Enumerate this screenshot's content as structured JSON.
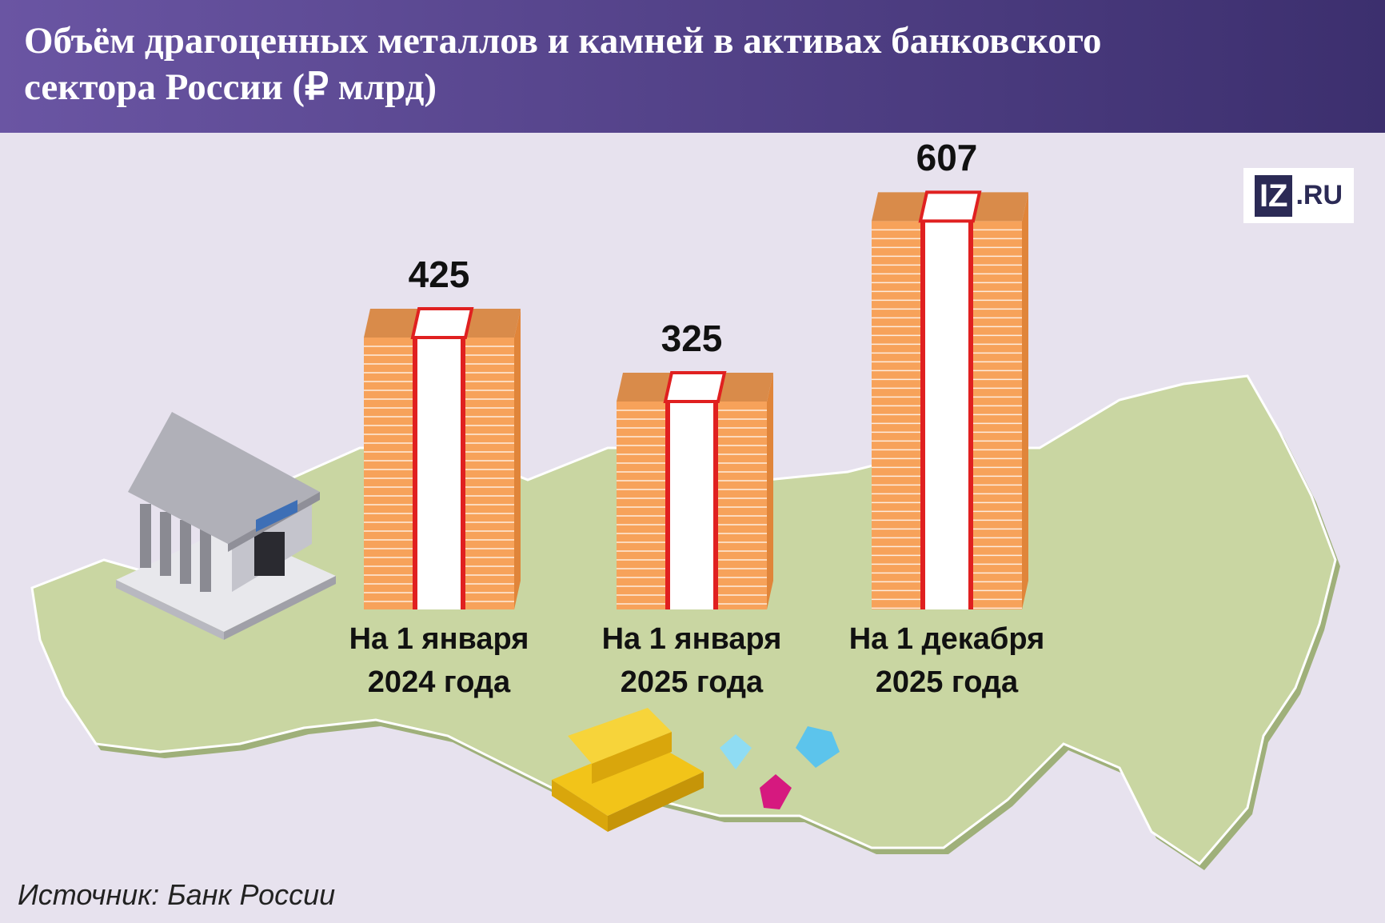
{
  "chart_data": {
    "type": "bar",
    "title": "Объём драгоценных металлов и камней в активах банковского сектора России (₽ млрд)",
    "categories": [
      "На 1 января 2024 года",
      "На 1 января 2025 года",
      "На 1 декабря 2025 года"
    ],
    "values": [
      425,
      325,
      607
    ],
    "color": "#f7a25a",
    "source": "Источник: Банк России",
    "logo": [
      "IZ",
      ".RU"
    ]
  }
}
